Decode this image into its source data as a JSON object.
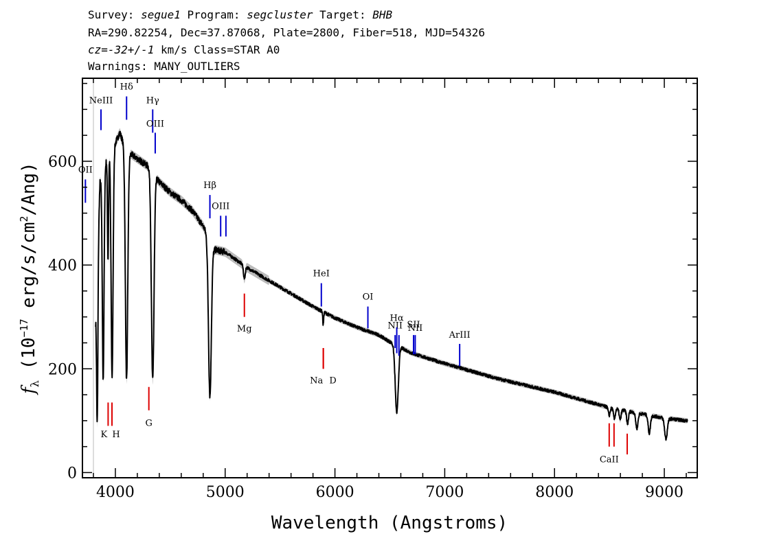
{
  "header": {
    "line1": {
      "survey_label": "Survey: ",
      "survey": "segue1",
      "program_label": " Program: ",
      "program": "segcluster",
      "target_label": " Target: ",
      "target": "BHB"
    },
    "line2": "RA=290.82254, Dec=37.87068, Plate=2800, Fiber=518, MJD=54326",
    "line3": {
      "cz_label": "cz=",
      "cz_value": "-32+/-1",
      "cz_rest": " km/s Class=STAR A0"
    },
    "line4": "Warnings: MANY_OUTLIERS"
  },
  "chart_data": {
    "type": "line",
    "xlabel": "Wavelength (Angstroms)",
    "ylabel": "f_λ (10^-17 erg/s/cm^2/Ang)",
    "xlim": [
      3700,
      9300
    ],
    "ylim": [
      -10,
      760
    ],
    "xticks": [
      4000,
      5000,
      6000,
      7000,
      8000,
      9000
    ],
    "yticks": [
      0,
      200,
      400,
      600
    ],
    "colors": {
      "spectrum": "#000000",
      "error_band": "#aaaaaa",
      "emission": "#0000cc",
      "absorption": "#dd0000"
    },
    "continuum": [
      [
        3820,
        300
      ],
      [
        3860,
        560
      ],
      [
        3900,
        590
      ],
      [
        3950,
        620
      ],
      [
        4000,
        635
      ],
      [
        4040,
        655
      ],
      [
        4100,
        620
      ],
      [
        4200,
        605
      ],
      [
        4300,
        590
      ],
      [
        4400,
        560
      ],
      [
        4500,
        540
      ],
      [
        4600,
        525
      ],
      [
        4700,
        505
      ],
      [
        4800,
        475
      ],
      [
        4900,
        430
      ],
      [
        5000,
        425
      ],
      [
        5100,
        410
      ],
      [
        5200,
        395
      ],
      [
        5400,
        370
      ],
      [
        5600,
        345
      ],
      [
        5800,
        320
      ],
      [
        6000,
        298
      ],
      [
        6200,
        280
      ],
      [
        6400,
        265
      ],
      [
        6500,
        252
      ],
      [
        6700,
        230
      ],
      [
        7000,
        210
      ],
      [
        7500,
        180
      ],
      [
        8000,
        155
      ],
      [
        8500,
        125
      ],
      [
        9000,
        105
      ],
      [
        9200,
        100
      ]
    ],
    "absorption_features": [
      {
        "center": 3835,
        "depth": 300,
        "width": 6
      },
      {
        "center": 3889,
        "depth": 400,
        "width": 8
      },
      {
        "center": 3933,
        "depth": 200,
        "width": 5
      },
      {
        "center": 3970,
        "depth": 440,
        "width": 9
      },
      {
        "center": 4102,
        "depth": 440,
        "width": 11
      },
      {
        "center": 4340,
        "depth": 400,
        "width": 12
      },
      {
        "center": 4861,
        "depth": 300,
        "width": 13
      },
      {
        "center": 5175,
        "depth": 25,
        "width": 8
      },
      {
        "center": 5893,
        "depth": 25,
        "width": 4
      },
      {
        "center": 6563,
        "depth": 130,
        "width": 14
      },
      {
        "center": 8498,
        "depth": 15,
        "width": 8
      },
      {
        "center": 8545,
        "depth": 20,
        "width": 8
      },
      {
        "center": 8598,
        "depth": 20,
        "width": 8
      },
      {
        "center": 8665,
        "depth": 25,
        "width": 8
      },
      {
        "center": 8750,
        "depth": 30,
        "width": 10
      },
      {
        "center": 8863,
        "depth": 35,
        "width": 10
      },
      {
        "center": 9015,
        "depth": 40,
        "width": 12
      }
    ],
    "emission_lines": [
      {
        "label": "OII",
        "wave": 3727,
        "y0": 520,
        "y1": 565,
        "label_y": 578
      },
      {
        "label": "NeIII",
        "wave": 3869,
        "y0": 660,
        "y1": 700,
        "label_y": 712
      },
      {
        "label": "Hδ",
        "wave": 4102,
        "y0": 680,
        "y1": 725,
        "label_y": 738
      },
      {
        "label": "Hγ",
        "wave": 4340,
        "y0": 655,
        "y1": 700,
        "label_y": 712
      },
      {
        "label": "OIII",
        "wave": 4363,
        "y0": 615,
        "y1": 655,
        "label_y": 667
      },
      {
        "label": "Hβ",
        "wave": 4861,
        "y0": 490,
        "y1": 535,
        "label_y": 548
      },
      {
        "label": "OIII",
        "wave": 4959,
        "y0": 455,
        "y1": 495,
        "label_y": 508
      },
      {
        "label": "OIII",
        "wave": 5007,
        "y0": 455,
        "y1": 495,
        "label_y": 0
      },
      {
        "label": "HeI",
        "wave": 5876,
        "y0": 320,
        "y1": 365,
        "label_y": 378
      },
      {
        "label": "OI",
        "wave": 6300,
        "y0": 278,
        "y1": 320,
        "label_y": 333
      },
      {
        "label": "NII",
        "wave": 6548,
        "y0": 240,
        "y1": 265,
        "label_y": 278
      },
      {
        "label": "Hα",
        "wave": 6563,
        "y0": 230,
        "y1": 280,
        "label_y": 292
      },
      {
        "label": "NII",
        "wave": 6583,
        "y0": 225,
        "y1": 265,
        "label_y": 0
      },
      {
        "label": "SII",
        "wave": 6716,
        "y0": 228,
        "y1": 265,
        "label_y": 280
      },
      {
        "label": "NII",
        "wave": 6731,
        "y0": 228,
        "y1": 265,
        "label_y": 273
      },
      {
        "label": "ArIII",
        "wave": 7136,
        "y0": 205,
        "y1": 248,
        "label_y": 260
      }
    ],
    "absorption_lines": [
      {
        "label": "K",
        "wave": 3934,
        "y0": 90,
        "y1": 135,
        "label_y": 68
      },
      {
        "label": "H",
        "wave": 3969,
        "y0": 90,
        "y1": 135,
        "label_y": 68
      },
      {
        "label": "G",
        "wave": 4305,
        "y0": 120,
        "y1": 165,
        "label_y": 90
      },
      {
        "label": "Mg",
        "wave": 5175,
        "y0": 300,
        "y1": 345,
        "label_y": 272
      },
      {
        "label": "Na",
        "wave": 5894,
        "y0": 200,
        "y1": 240,
        "label_y": 172
      },
      {
        "label": "D",
        "wave": 5894,
        "y0": 200,
        "y1": 240,
        "label_y": 172
      },
      {
        "label": "CaII",
        "wave": 8498,
        "y0": 50,
        "y1": 95,
        "label_y": 20
      },
      {
        "label": "CaII",
        "wave": 8542,
        "y0": 50,
        "y1": 95,
        "label_y": 0
      },
      {
        "label": "CaII",
        "wave": 8662,
        "y0": 35,
        "y1": 75,
        "label_y": 0
      }
    ]
  }
}
